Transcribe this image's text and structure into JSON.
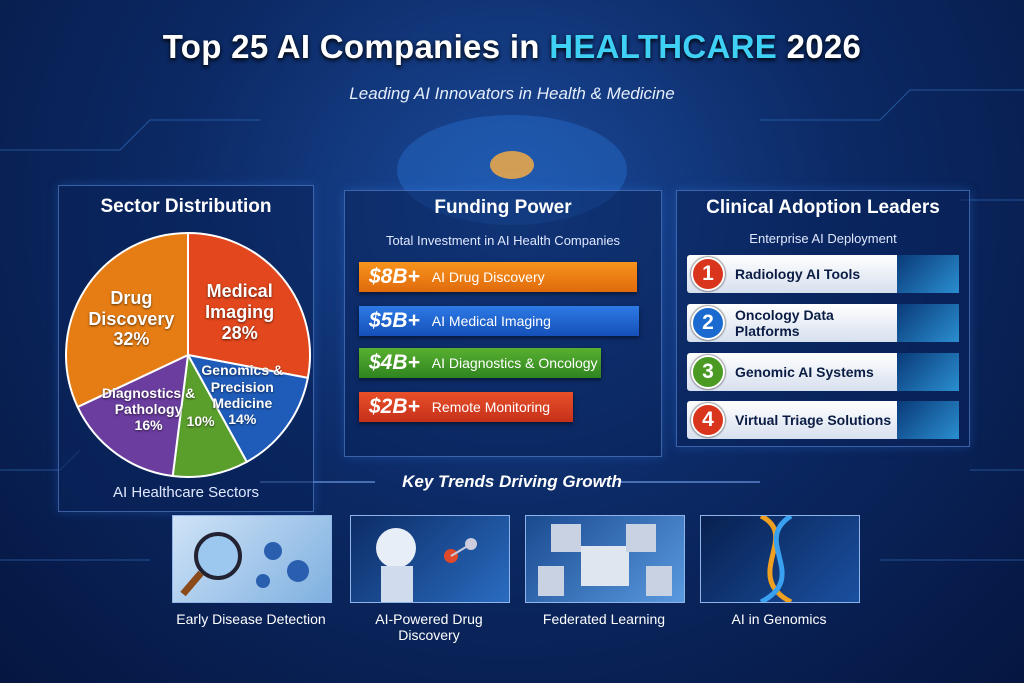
{
  "header": {
    "title_prefix": "Top 25 AI Companies in",
    "title_highlight": "HEALTHCARE",
    "title_suffix": "2026",
    "subtitle": "Leading AI Innovators in Health & Medicine"
  },
  "chart_data": {
    "type": "pie",
    "title": "Sector Distribution",
    "caption": "AI Healthcare Sectors",
    "categories": [
      "Medical Imaging",
      "Genomics & Precision Medicine",
      null,
      "Diagnostics & Pathology",
      "Drug Discovery"
    ],
    "values": [
      28,
      14,
      10,
      16,
      32
    ],
    "value_labels": [
      "28%",
      "14%",
      "10%",
      "16%",
      "32%"
    ],
    "colors": [
      "#e2471d",
      "#1f5cba",
      "#5a9e2c",
      "#6a3d9e",
      "#e67d14"
    ]
  },
  "funding": {
    "title": "Funding Power",
    "subtitle": "Total Investment in AI Health Companies",
    "items": [
      {
        "amount": "$8B+",
        "label": "AI Drug Discovery"
      },
      {
        "amount": "$5B+",
        "label": "AI Medical Imaging"
      },
      {
        "amount": "$4B+",
        "label": "AI Diagnostics & Oncology"
      },
      {
        "amount": "$2B+",
        "label": "Remote Monitoring"
      }
    ]
  },
  "adoption": {
    "title": "Clinical Adoption Leaders",
    "subtitle": "Enterprise AI Deployment",
    "items": [
      {
        "rank": "1",
        "label": "Radiology AI Tools"
      },
      {
        "rank": "2",
        "label": "Oncology Data Platforms"
      },
      {
        "rank": "3",
        "label": "Genomic AI Systems"
      },
      {
        "rank": "4",
        "label": "Virtual Triage Solutions"
      }
    ]
  },
  "trends": {
    "title": "Key Trends Driving Growth",
    "items": [
      "Early Disease Detection",
      "AI-Powered Drug Discovery",
      "Federated Learning",
      "AI in Genomics"
    ]
  }
}
